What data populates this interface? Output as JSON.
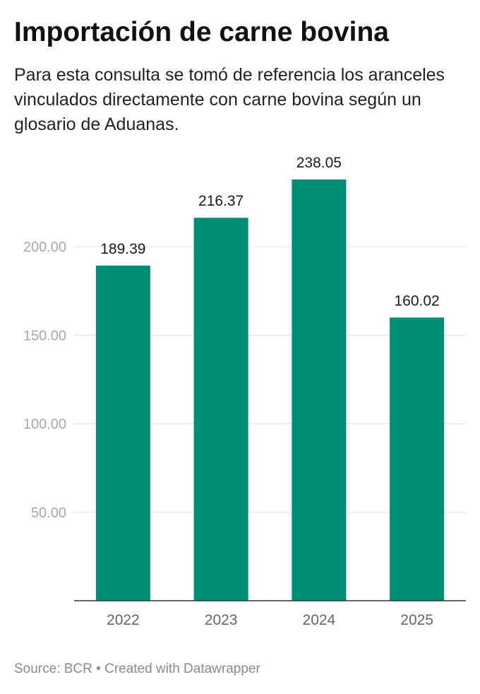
{
  "title": "Importación de carne bovina",
  "subtitle": "Para esta consulta se tomó de referencia los aranceles vinculados directamente con carne bovina según un glosario de Aduanas.",
  "footer": {
    "source_label": "Source: BCR",
    "separator": "•",
    "credit": "Created with Datawrapper"
  },
  "chart_data": {
    "type": "bar",
    "title": "Importación de carne bovina",
    "categories": [
      "2022",
      "2023",
      "2024",
      "2025"
    ],
    "values": [
      189.39,
      216.37,
      238.05,
      160.02
    ],
    "value_labels": [
      "189.39",
      "216.37",
      "238.05",
      "160.02"
    ],
    "y_ticks": [
      50,
      100,
      150,
      200
    ],
    "y_tick_labels": [
      "50.00",
      "100.00",
      "150.00",
      "200.00"
    ],
    "ylim": [
      0,
      250
    ],
    "grid": true,
    "bar_color": "#008f74",
    "grid_color": "#e4e4e4",
    "axis_color": "#333333",
    "tick_label_color": "#a8a8a8",
    "category_label_color": "#666666",
    "value_label_color": "#1a1a1a"
  }
}
